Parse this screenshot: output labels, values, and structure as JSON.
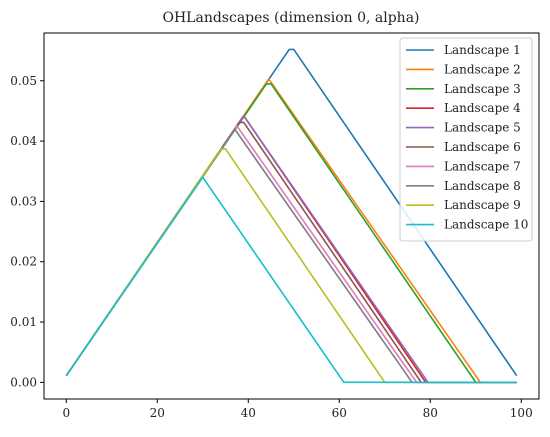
{
  "chart_data": {
    "type": "line",
    "title": "OHLandscapes (dimension 0, alpha)",
    "xlabel": "",
    "ylabel": "",
    "xlim": [
      -4.9,
      103.9
    ],
    "ylim": [
      -0.00276,
      0.05792
    ],
    "xticks": [
      0,
      20,
      40,
      60,
      80,
      100
    ],
    "xtick_labels": [
      "0",
      "20",
      "40",
      "60",
      "80",
      "100"
    ],
    "yticks": [
      0.0,
      0.01,
      0.02,
      0.03,
      0.04,
      0.05
    ],
    "ytick_labels": [
      "0.00",
      "0.01",
      "0.02",
      "0.03",
      "0.04",
      "0.05"
    ],
    "grid": false,
    "legend_position": "top-right",
    "series": [
      {
        "name": "Landscape 1",
        "color": "#1f77b4",
        "x": [
          0,
          49,
          50,
          99
        ],
        "y": [
          0.0011,
          0.0552,
          0.0552,
          0.0011
        ]
      },
      {
        "name": "Landscape 2",
        "color": "#ff7f0e",
        "x": [
          0,
          44.5,
          91,
          99
        ],
        "y": [
          0.0011,
          0.0503,
          0.0,
          0.0
        ]
      },
      {
        "name": "Landscape 3",
        "color": "#2ca02c",
        "x": [
          0,
          44,
          45,
          90,
          99
        ],
        "y": [
          0.0011,
          0.0495,
          0.0495,
          0.0,
          0.0
        ]
      },
      {
        "name": "Landscape 4",
        "color": "#d62728",
        "x": [
          0,
          39,
          79,
          99
        ],
        "y": [
          0.0011,
          0.0442,
          0.0,
          0.0
        ]
      },
      {
        "name": "Landscape 5",
        "color": "#9467bd",
        "x": [
          0,
          39,
          79.5,
          99
        ],
        "y": [
          0.0011,
          0.0442,
          0.0,
          0.0
        ]
      },
      {
        "name": "Landscape 6",
        "color": "#8c564b",
        "x": [
          0,
          38,
          39,
          78,
          99
        ],
        "y": [
          0.0011,
          0.0431,
          0.0431,
          0.0,
          0.0
        ]
      },
      {
        "name": "Landscape 7",
        "color": "#e377c2",
        "x": [
          0,
          37.5,
          77,
          99
        ],
        "y": [
          0.0011,
          0.0425,
          0.0,
          0.0
        ]
      },
      {
        "name": "Landscape 8",
        "color": "#7f7f7f",
        "x": [
          0,
          37,
          76,
          99
        ],
        "y": [
          0.0011,
          0.042,
          0.0,
          0.0
        ]
      },
      {
        "name": "Landscape 9",
        "color": "#bcbd22",
        "x": [
          0,
          34,
          35,
          70,
          99
        ],
        "y": [
          0.0011,
          0.0387,
          0.0387,
          0.0,
          0.0
        ]
      },
      {
        "name": "Landscape 10",
        "color": "#17becf",
        "x": [
          0,
          30,
          61,
          99
        ],
        "y": [
          0.0011,
          0.034,
          0.0,
          0.0
        ]
      }
    ]
  }
}
